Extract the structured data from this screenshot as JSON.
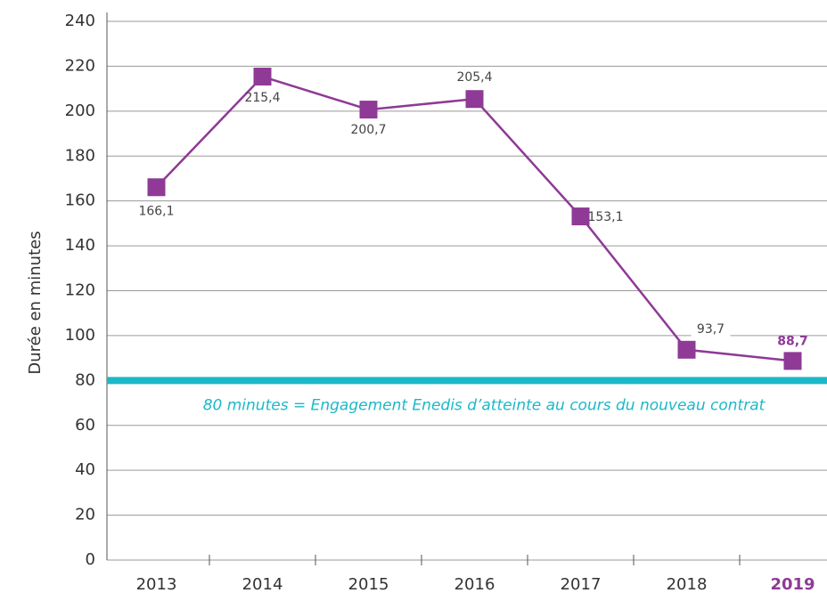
{
  "chart_data": {
    "type": "line",
    "y_label": "Durée en minutes",
    "categories": [
      "2013",
      "2014",
      "2015",
      "2016",
      "2017",
      "2018",
      "2019"
    ],
    "series": [
      {
        "name": "Durée",
        "color": "#8e3a96",
        "values": [
          166.1,
          215.4,
          200.7,
          205.4,
          153.1,
          93.7,
          88.7
        ],
        "value_labels": [
          "166,1",
          "215,4",
          "200,7",
          "205,4",
          "153,1",
          "93,7",
          "88,7"
        ]
      }
    ],
    "ylim": [
      0,
      240
    ],
    "yticks": [
      0,
      20,
      40,
      60,
      80,
      100,
      120,
      140,
      160,
      180,
      200,
      220,
      240
    ],
    "grid": true,
    "reference_line": {
      "value": 80,
      "color": "#1bb8c8",
      "label": "80 minutes  = Engagement Enedis d’atteinte au cours du nouveau contrat"
    }
  }
}
